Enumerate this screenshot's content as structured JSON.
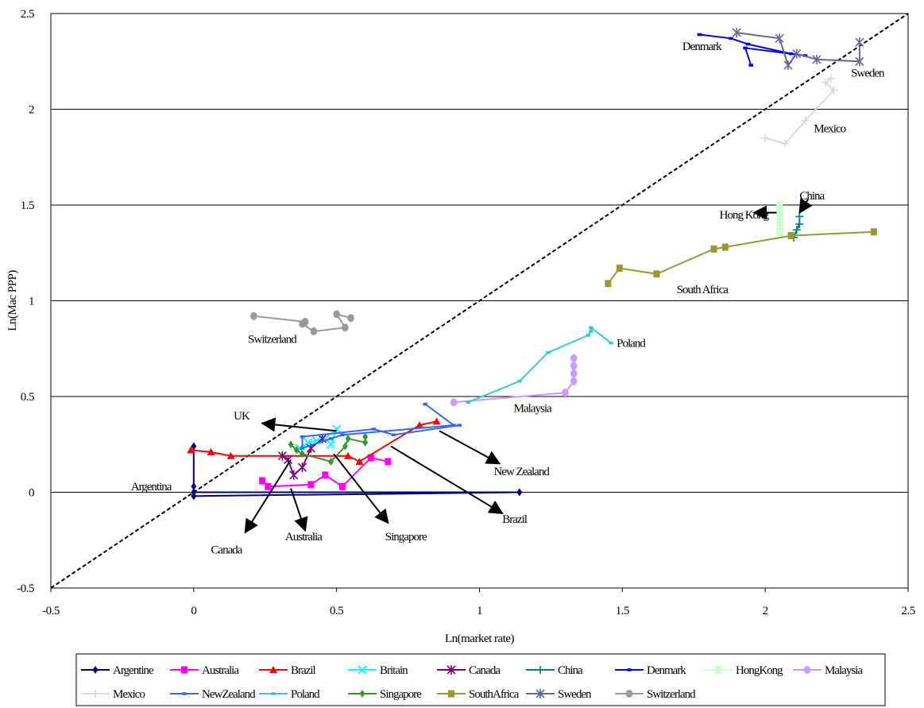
{
  "chart_data": {
    "type": "line",
    "title": "",
    "xlabel": "Ln(market rate)",
    "ylabel": "Ln(Mac PPP)",
    "xlim": [
      -0.5,
      2.5
    ],
    "ylim": [
      -0.5,
      2.5
    ],
    "x_ticks": [
      "-0.5",
      "0",
      "0.5",
      "1",
      "1.5",
      "2",
      "2.5"
    ],
    "y_ticks": [
      "-0.5",
      "0",
      "0.5",
      "1",
      "1.5",
      "2",
      "2.5"
    ],
    "grid": "horizontal",
    "legend_position": "bottom",
    "reference_line": {
      "type": "diagonal-45",
      "style": "dashed",
      "color": "#000000"
    },
    "series": [
      {
        "name": "Argentine",
        "color": "#000080",
        "marker": "diamond",
        "x": [
          0.0,
          0.0,
          0.0,
          1.14,
          0.0
        ],
        "y": [
          0.24,
          0.03,
          0.0,
          0.0,
          -0.02
        ]
      },
      {
        "name": "Australia",
        "color": "#FF00FF",
        "marker": "square",
        "x": [
          0.24,
          0.26,
          0.41,
          0.46,
          0.52,
          0.62,
          0.68
        ],
        "y": [
          0.06,
          0.03,
          0.04,
          0.09,
          0.03,
          0.18,
          0.16
        ]
      },
      {
        "name": "Brazil",
        "color": "#FF0000",
        "marker": "triangle",
        "x": [
          -0.01,
          0.06,
          0.13,
          0.54,
          0.58,
          0.79,
          0.85
        ],
        "y": [
          0.22,
          0.21,
          0.19,
          0.19,
          0.16,
          0.35,
          0.37
        ]
      },
      {
        "name": "Britain",
        "color": "#00FFFF",
        "marker": "x",
        "x": [
          0.37,
          0.4,
          0.43,
          0.46,
          0.48,
          0.5
        ],
        "y": [
          0.23,
          0.26,
          0.27,
          0.28,
          0.25,
          0.33
        ]
      },
      {
        "name": "Canada",
        "color": "#800080",
        "marker": "star",
        "x": [
          0.31,
          0.33,
          0.35,
          0.38,
          0.41,
          0.45
        ],
        "y": [
          0.19,
          0.17,
          0.09,
          0.13,
          0.23,
          0.28
        ]
      },
      {
        "name": "China",
        "color": "#008080",
        "marker": "plus",
        "x": [
          2.1,
          2.11,
          2.12,
          2.12
        ],
        "y": [
          1.33,
          1.37,
          1.4,
          1.44
        ]
      },
      {
        "name": "Denmark",
        "color": "#0000FF",
        "marker": "dash",
        "x": [
          1.77,
          1.88,
          1.94,
          2.09,
          2.14,
          1.93,
          1.95
        ],
        "y": [
          2.39,
          2.37,
          2.34,
          2.29,
          2.28,
          2.32,
          2.23
        ]
      },
      {
        "name": "HongKong",
        "color": "#CCFFCC",
        "marker": "square-tall",
        "x": [
          2.05,
          2.05,
          2.05,
          2.05
        ],
        "y": [
          1.36,
          1.41,
          1.46,
          1.5
        ]
      },
      {
        "name": "Malaysia",
        "color": "#CC99FF",
        "marker": "oval",
        "x": [
          0.91,
          1.3,
          1.33,
          1.33,
          1.33,
          1.33
        ],
        "y": [
          0.47,
          0.52,
          0.58,
          0.62,
          0.66,
          0.7
        ]
      },
      {
        "name": "Mexico",
        "color": "#D9D9D9",
        "marker": "plus",
        "x": [
          2.0,
          2.07,
          2.14,
          2.24,
          2.21,
          2.23
        ],
        "y": [
          1.85,
          1.82,
          1.94,
          2.1,
          2.14,
          2.16
        ]
      },
      {
        "name": "NewZealand",
        "color": "#3366FF",
        "marker": "dash",
        "x": [
          0.93,
          0.7,
          0.63,
          0.38,
          0.38,
          0.48,
          0.52,
          0.91,
          0.81
        ],
        "y": [
          0.35,
          0.3,
          0.33,
          0.29,
          0.23,
          0.28,
          0.3,
          0.35,
          0.46
        ]
      },
      {
        "name": "Poland",
        "color": "#33CCCC",
        "marker": "dash",
        "x": [
          0.96,
          1.14,
          1.24,
          1.38,
          1.39,
          1.39,
          1.46
        ],
        "y": [
          0.47,
          0.58,
          0.73,
          0.82,
          0.84,
          0.86,
          0.78
        ]
      },
      {
        "name": "Singapore",
        "color": "#339933",
        "marker": "diamond",
        "x": [
          0.34,
          0.36,
          0.38,
          0.48,
          0.53,
          0.54,
          0.6,
          0.6
        ],
        "y": [
          0.25,
          0.22,
          0.2,
          0.16,
          0.24,
          0.28,
          0.26,
          0.29
        ]
      },
      {
        "name": "SouthAfrica",
        "color": "#999933",
        "marker": "square",
        "x": [
          1.45,
          1.49,
          1.62,
          1.82,
          1.86,
          2.09,
          2.38
        ],
        "y": [
          1.09,
          1.17,
          1.14,
          1.27,
          1.28,
          1.34,
          1.36
        ]
      },
      {
        "name": "Sweden",
        "color": "#666699",
        "marker": "star",
        "x": [
          1.9,
          2.05,
          2.08,
          2.11,
          2.18,
          2.33,
          2.33
        ],
        "y": [
          2.4,
          2.37,
          2.23,
          2.29,
          2.26,
          2.25,
          2.35
        ]
      },
      {
        "name": "Switzerland",
        "color": "#999999",
        "marker": "oval",
        "x": [
          0.21,
          0.39,
          0.38,
          0.42,
          0.53,
          0.5,
          0.55
        ],
        "y": [
          0.92,
          0.89,
          0.88,
          0.84,
          0.86,
          0.93,
          0.91
        ]
      }
    ],
    "annotations": [
      {
        "text": "Denmark",
        "x": 1.71,
        "y": 2.31,
        "anchor": "start"
      },
      {
        "text": "Sweden",
        "x": 2.3,
        "y": 2.17,
        "anchor": "start"
      },
      {
        "text": "Mexico",
        "x": 2.17,
        "y": 1.88,
        "anchor": "start"
      },
      {
        "text": "China",
        "x": 2.12,
        "y": 1.53,
        "anchor": "start"
      },
      {
        "text": "Hong Kong",
        "x": 1.84,
        "y": 1.43,
        "anchor": "start"
      },
      {
        "text": "South Africa",
        "x": 1.69,
        "y": 1.04,
        "anchor": "start"
      },
      {
        "text": "Switzerland",
        "x": 0.19,
        "y": 0.78,
        "anchor": "start"
      },
      {
        "text": "Poland",
        "x": 1.48,
        "y": 0.76,
        "anchor": "start"
      },
      {
        "text": "Malaysia",
        "x": 1.12,
        "y": 0.42,
        "anchor": "start"
      },
      {
        "text": "UK",
        "x": 0.14,
        "y": 0.38,
        "anchor": "start"
      },
      {
        "text": "New Zealand",
        "x": 1.05,
        "y": 0.09,
        "anchor": "start"
      },
      {
        "text": "Argentina",
        "x": -0.22,
        "y": 0.01,
        "anchor": "start"
      },
      {
        "text": "Brazil",
        "x": 1.08,
        "y": -0.16,
        "anchor": "start"
      },
      {
        "text": "Canada",
        "x": 0.06,
        "y": -0.32,
        "anchor": "start"
      },
      {
        "text": "Australia",
        "x": 0.32,
        "y": -0.25,
        "anchor": "start"
      },
      {
        "text": "Singapore",
        "x": 0.67,
        "y": -0.25,
        "anchor": "start"
      }
    ],
    "arrows": [
      {
        "from": [
          2.04,
          1.46
        ],
        "to": [
          1.96,
          1.46
        ]
      },
      {
        "from": [
          2.15,
          1.53
        ],
        "to": [
          2.12,
          1.46
        ]
      },
      {
        "from": [
          0.5,
          0.32
        ],
        "to": [
          0.24,
          0.36
        ]
      },
      {
        "from": [
          0.86,
          0.32
        ],
        "to": [
          1.07,
          0.15
        ]
      },
      {
        "from": [
          0.69,
          0.24
        ],
        "to": [
          1.08,
          -0.11
        ]
      },
      {
        "from": [
          0.34,
          0.17
        ],
        "to": [
          0.18,
          -0.21
        ]
      },
      {
        "from": [
          0.34,
          0.02
        ],
        "to": [
          0.39,
          -0.2
        ]
      },
      {
        "from": [
          0.49,
          0.2
        ],
        "to": [
          0.68,
          -0.16
        ]
      }
    ]
  }
}
